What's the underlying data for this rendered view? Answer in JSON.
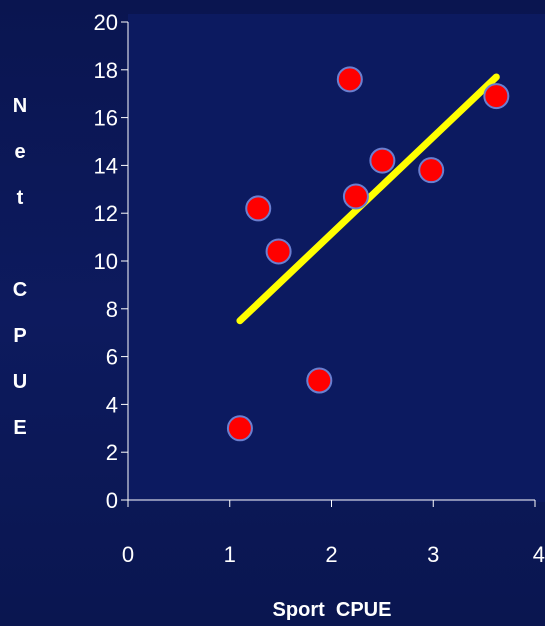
{
  "colors": {
    "background": "#0a1650",
    "plot_area": "#0c1a60",
    "axis": "#ffffff",
    "point_fill": "#ff0000",
    "point_stroke": "#6a7fd0",
    "trendline": "#ffff00"
  },
  "chart_data": {
    "type": "scatter",
    "title": "",
    "xlabel": "Sport  CPUE",
    "ylabel": "Net  CPUE",
    "ylabel_letters": [
      "N",
      "e",
      "t",
      "",
      "C",
      "P",
      "U",
      "E"
    ],
    "xlim": [
      0,
      4
    ],
    "ylim": [
      0,
      20
    ],
    "x_ticks": [
      0,
      1,
      2,
      3,
      4
    ],
    "y_ticks": [
      0,
      2,
      4,
      6,
      8,
      10,
      12,
      14,
      16,
      18,
      20
    ],
    "x_tick_labels": [
      "0",
      "1",
      "2",
      "3",
      "4"
    ],
    "y_tick_labels": [
      "0",
      "2",
      "4",
      "6",
      "8",
      "10",
      "12",
      "14",
      "16",
      "18",
      "20"
    ],
    "grid": false,
    "legend": "none",
    "points": [
      {
        "x": 1.1,
        "y": 3.0
      },
      {
        "x": 1.28,
        "y": 12.2
      },
      {
        "x": 1.48,
        "y": 10.4
      },
      {
        "x": 1.88,
        "y": 5.0
      },
      {
        "x": 2.18,
        "y": 17.6
      },
      {
        "x": 2.24,
        "y": 12.7
      },
      {
        "x": 2.5,
        "y": 14.2
      },
      {
        "x": 2.98,
        "y": 13.8
      },
      {
        "x": 3.62,
        "y": 16.9
      }
    ],
    "trendline": {
      "x": [
        1.1,
        3.62
      ],
      "y": [
        7.5,
        17.7
      ]
    }
  }
}
